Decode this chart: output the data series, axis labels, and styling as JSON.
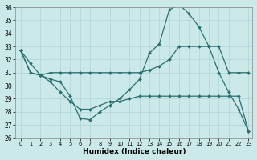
{
  "xlabel": "Humidex (Indice chaleur)",
  "bg_color": "#cce9e9",
  "line_color": "#2a7070",
  "grid_color": "#aed4d4",
  "xlim_min": -0.5,
  "xlim_max": 23.4,
  "ylim_min": 26,
  "ylim_max": 36,
  "yticks": [
    26,
    27,
    28,
    29,
    30,
    31,
    32,
    33,
    34,
    35,
    36
  ],
  "xticks": [
    0,
    1,
    2,
    3,
    4,
    5,
    6,
    7,
    8,
    9,
    10,
    11,
    12,
    13,
    14,
    15,
    16,
    17,
    18,
    19,
    20,
    21,
    22,
    23
  ],
  "x": [
    0,
    1,
    2,
    3,
    4,
    5,
    6,
    7,
    8,
    9,
    10,
    11,
    12,
    13,
    14,
    15,
    16,
    17,
    18,
    19,
    20,
    21,
    22,
    23
  ],
  "line1": [
    32.7,
    31.7,
    30.8,
    30.5,
    30.3,
    29.2,
    27.5,
    27.4,
    28.0,
    28.5,
    29.0,
    29.7,
    30.5,
    32.5,
    33.2,
    35.8,
    36.2,
    35.5,
    34.5,
    33.0,
    31.0,
    29.5,
    28.2,
    26.5
  ],
  "line2": [
    32.7,
    31.0,
    30.8,
    31.0,
    31.0,
    31.0,
    31.0,
    31.0,
    31.0,
    31.0,
    31.0,
    31.0,
    31.0,
    31.2,
    31.5,
    32.0,
    33.0,
    33.0,
    33.0,
    33.0,
    33.0,
    31.0,
    31.0,
    31.0
  ],
  "line3": [
    32.7,
    31.0,
    30.8,
    30.3,
    29.5,
    28.8,
    28.2,
    28.2,
    28.5,
    28.8,
    28.8,
    29.0,
    29.2,
    29.2,
    29.2,
    29.2,
    29.2,
    29.2,
    29.2,
    29.2,
    29.2,
    29.2,
    29.2,
    26.5
  ]
}
